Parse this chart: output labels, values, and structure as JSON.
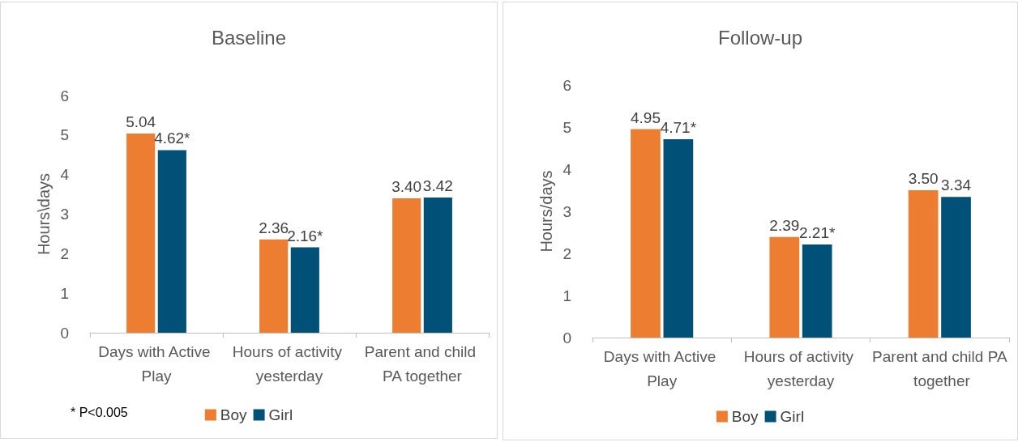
{
  "chart_data": [
    {
      "type": "bar",
      "title": "Baseline",
      "ylabel": "Hours\\days",
      "categories": [
        "Days with Active Play",
        "Hours of activity yesterday",
        "Parent and child PA together"
      ],
      "series": [
        {
          "name": "Boy",
          "color": "#ed7d31",
          "values": [
            5.04,
            2.36,
            3.4
          ],
          "value_labels": [
            "5.04",
            "2.36",
            "3.40"
          ]
        },
        {
          "name": "Girl",
          "color": "#005078",
          "values": [
            4.62,
            2.16,
            3.42
          ],
          "value_labels": [
            "4.62*",
            "2.16*",
            "3.42"
          ]
        }
      ],
      "ylim": [
        0,
        6
      ],
      "yticks": [
        0,
        1,
        2,
        3,
        4,
        5,
        6
      ],
      "grid": false,
      "legend": "bottom",
      "annotations": [
        "* P<0.005"
      ]
    },
    {
      "type": "bar",
      "title": "Follow-up",
      "ylabel": "Hours/days",
      "categories": [
        "Days with Active Play",
        "Hours of activity yesterday",
        "Parent and child PA together"
      ],
      "series": [
        {
          "name": "Boy",
          "color": "#ed7d31",
          "values": [
            4.95,
            2.39,
            3.5
          ],
          "value_labels": [
            "4.95",
            "2.39",
            "3.50"
          ]
        },
        {
          "name": "Girl",
          "color": "#005078",
          "values": [
            4.71,
            2.21,
            3.34
          ],
          "value_labels": [
            "4.71*",
            "2.21*",
            "3.34"
          ]
        }
      ],
      "ylim": [
        0,
        6
      ],
      "yticks": [
        0,
        1,
        2,
        3,
        4,
        5,
        6
      ],
      "grid": false,
      "legend": "bottom"
    }
  ]
}
